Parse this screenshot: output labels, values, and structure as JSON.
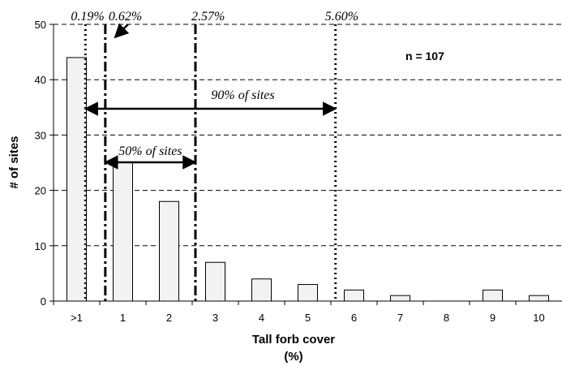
{
  "chart_data": {
    "type": "bar",
    "categories": [
      ">1",
      "1",
      "2",
      "3",
      "4",
      "5",
      "6",
      "7",
      "8",
      "9",
      "10"
    ],
    "values": [
      44,
      25,
      18,
      7,
      4,
      3,
      2,
      1,
      0,
      2,
      1
    ],
    "xlabel": "Tall forb cover",
    "xlabel_unit": "(%)",
    "ylabel": "# of sites",
    "ylim": [
      0,
      50
    ],
    "yticks": [
      0,
      10,
      20,
      30,
      40,
      50
    ],
    "grid": "horizontal dashed",
    "bar_fill": "#f2f2f2",
    "annotation_n": "n = 107",
    "reference_lines": [
      {
        "value": 0.19,
        "label": "0.19%",
        "style": "dotted"
      },
      {
        "value": 0.62,
        "label": "0.62%",
        "style": "dash-dot"
      },
      {
        "value": 2.57,
        "label": "2.57%",
        "style": "dash-dot"
      },
      {
        "value": 5.6,
        "label": "5.60%",
        "style": "dotted"
      }
    ],
    "ranges": [
      {
        "label": "90% of sites",
        "from": 0.19,
        "to": 5.6
      },
      {
        "label": "50% of sites",
        "from": 0.62,
        "to": 2.57
      }
    ]
  }
}
